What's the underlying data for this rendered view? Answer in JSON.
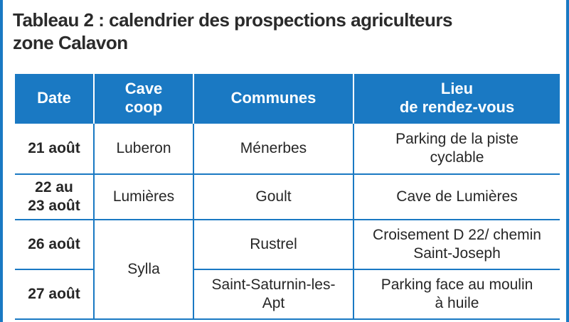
{
  "title": {
    "line1": "Tableau 2 : calendrier des prospections agriculteurs",
    "line2": "zone Calavon"
  },
  "header": {
    "date": "Date",
    "cave_line1": "Cave",
    "cave_line2": "coop",
    "communes": "Communes",
    "lieu_line1": "Lieu",
    "lieu_line2": "de rendez-vous"
  },
  "rows": [
    {
      "date_line1": "21 août",
      "date_line2": "",
      "cave": "Luberon",
      "commune_line1": "Ménerbes",
      "commune_line2": "",
      "lieu_line1": "Parking de la piste",
      "lieu_line2": "cyclable"
    },
    {
      "date_line1": "22 au",
      "date_line2": "23 août",
      "cave": "Lumières",
      "commune_line1": "Goult",
      "commune_line2": "",
      "lieu_line1": "Cave de Lumières",
      "lieu_line2": ""
    },
    {
      "date_line1": "26 août",
      "date_line2": "",
      "cave": "Sylla",
      "commune_line1": "Rustrel",
      "commune_line2": "",
      "lieu_line1": "Croisement D 22/ chemin",
      "lieu_line2": "Saint-Joseph"
    },
    {
      "date_line1": "27 août",
      "date_line2": "",
      "cave": "",
      "commune_line1": "Saint-Saturnin-les-",
      "commune_line2": "Apt",
      "lieu_line1": "Parking face au moulin",
      "lieu_line2": "à huile"
    }
  ],
  "colors": {
    "accent": "#1a79c3",
    "text": "#262626",
    "title": "#2b2b2b"
  }
}
